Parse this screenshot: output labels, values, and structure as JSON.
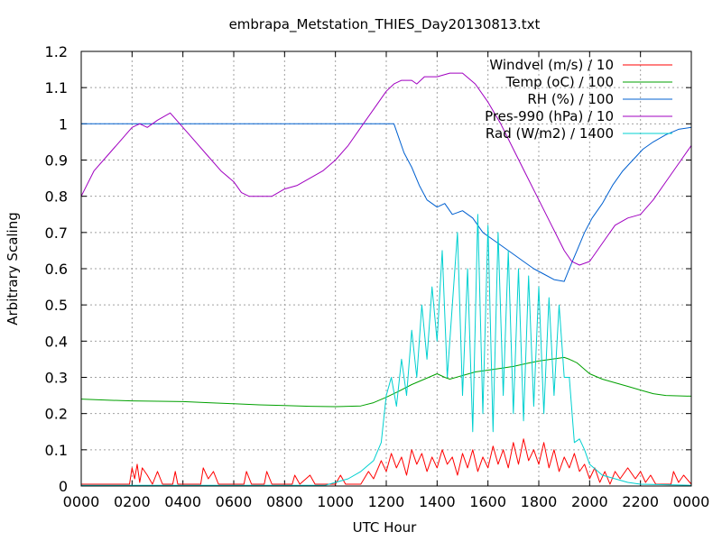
{
  "chart_data": {
    "type": "line",
    "title": "embrapa_Metstation_THIES_Day20130813.txt",
    "xlabel": "UTC Hour",
    "ylabel": "Arbitrary Scaling",
    "xlim": [
      0,
      24
    ],
    "ylim": [
      0,
      1.2
    ],
    "x_tick_labels": [
      "0000",
      "0200",
      "0400",
      "0600",
      "0800",
      "1000",
      "1200",
      "1400",
      "1600",
      "1800",
      "2000",
      "2200",
      "0000"
    ],
    "y_tick_labels": [
      "0",
      "0.1",
      "0.2",
      "0.3",
      "0.4",
      "0.5",
      "0.6",
      "0.7",
      "0.8",
      "0.9",
      "1",
      "1.1",
      "1.2"
    ],
    "grid": true,
    "legend_position": "top-right",
    "series": [
      {
        "name": "Windvel (m/s) / 10",
        "color": "#ff0000",
        "points": [
          [
            0,
            0.005
          ],
          [
            1.9,
            0.005
          ],
          [
            2.0,
            0.05
          ],
          [
            2.1,
            0.02
          ],
          [
            2.2,
            0.06
          ],
          [
            2.3,
            0.01
          ],
          [
            2.4,
            0.05
          ],
          [
            2.6,
            0.03
          ],
          [
            2.8,
            0.005
          ],
          [
            3.0,
            0.04
          ],
          [
            3.2,
            0.005
          ],
          [
            3.6,
            0.005
          ],
          [
            3.7,
            0.04
          ],
          [
            3.8,
            0.005
          ],
          [
            4.7,
            0.005
          ],
          [
            4.8,
            0.05
          ],
          [
            5.0,
            0.02
          ],
          [
            5.2,
            0.04
          ],
          [
            5.4,
            0.005
          ],
          [
            6.4,
            0.005
          ],
          [
            6.5,
            0.04
          ],
          [
            6.7,
            0.005
          ],
          [
            7.2,
            0.005
          ],
          [
            7.3,
            0.04
          ],
          [
            7.5,
            0.005
          ],
          [
            8.3,
            0.005
          ],
          [
            8.4,
            0.03
          ],
          [
            8.6,
            0.005
          ],
          [
            9.0,
            0.03
          ],
          [
            9.2,
            0.005
          ],
          [
            10.0,
            0.005
          ],
          [
            10.2,
            0.03
          ],
          [
            10.4,
            0.005
          ],
          [
            11.0,
            0.005
          ],
          [
            11.3,
            0.04
          ],
          [
            11.5,
            0.02
          ],
          [
            11.8,
            0.07
          ],
          [
            12.0,
            0.04
          ],
          [
            12.2,
            0.09
          ],
          [
            12.4,
            0.05
          ],
          [
            12.6,
            0.08
          ],
          [
            12.8,
            0.03
          ],
          [
            13.0,
            0.1
          ],
          [
            13.2,
            0.06
          ],
          [
            13.4,
            0.09
          ],
          [
            13.6,
            0.04
          ],
          [
            13.8,
            0.08
          ],
          [
            14.0,
            0.05
          ],
          [
            14.2,
            0.1
          ],
          [
            14.4,
            0.06
          ],
          [
            14.6,
            0.08
          ],
          [
            14.8,
            0.03
          ],
          [
            15.0,
            0.09
          ],
          [
            15.2,
            0.05
          ],
          [
            15.4,
            0.1
          ],
          [
            15.6,
            0.04
          ],
          [
            15.8,
            0.08
          ],
          [
            16.0,
            0.05
          ],
          [
            16.2,
            0.11
          ],
          [
            16.4,
            0.06
          ],
          [
            16.6,
            0.1
          ],
          [
            16.8,
            0.05
          ],
          [
            17.0,
            0.12
          ],
          [
            17.2,
            0.06
          ],
          [
            17.4,
            0.13
          ],
          [
            17.6,
            0.07
          ],
          [
            17.8,
            0.1
          ],
          [
            18.0,
            0.06
          ],
          [
            18.2,
            0.12
          ],
          [
            18.4,
            0.05
          ],
          [
            18.6,
            0.1
          ],
          [
            18.8,
            0.04
          ],
          [
            19.0,
            0.08
          ],
          [
            19.2,
            0.05
          ],
          [
            19.4,
            0.09
          ],
          [
            19.6,
            0.04
          ],
          [
            19.8,
            0.06
          ],
          [
            20.0,
            0.02
          ],
          [
            20.2,
            0.05
          ],
          [
            20.4,
            0.01
          ],
          [
            20.6,
            0.04
          ],
          [
            20.8,
            0.005
          ],
          [
            21.0,
            0.04
          ],
          [
            21.2,
            0.02
          ],
          [
            21.5,
            0.05
          ],
          [
            21.8,
            0.02
          ],
          [
            22.0,
            0.04
          ],
          [
            22.2,
            0.01
          ],
          [
            22.4,
            0.03
          ],
          [
            22.6,
            0.005
          ],
          [
            23.2,
            0.005
          ],
          [
            23.3,
            0.04
          ],
          [
            23.5,
            0.01
          ],
          [
            23.7,
            0.03
          ],
          [
            24,
            0.005
          ]
        ]
      },
      {
        "name": "Temp (oC) / 100",
        "color": "#00a000",
        "points": [
          [
            0,
            0.24
          ],
          [
            1,
            0.237
          ],
          [
            2,
            0.235
          ],
          [
            3,
            0.234
          ],
          [
            4,
            0.233
          ],
          [
            5,
            0.23
          ],
          [
            6,
            0.227
          ],
          [
            7,
            0.224
          ],
          [
            8,
            0.222
          ],
          [
            9,
            0.22
          ],
          [
            10,
            0.219
          ],
          [
            11,
            0.221
          ],
          [
            11.5,
            0.23
          ],
          [
            12,
            0.245
          ],
          [
            12.5,
            0.262
          ],
          [
            13,
            0.28
          ],
          [
            13.5,
            0.295
          ],
          [
            14,
            0.31
          ],
          [
            14.3,
            0.3
          ],
          [
            14.5,
            0.295
          ],
          [
            15,
            0.305
          ],
          [
            15.5,
            0.315
          ],
          [
            16,
            0.32
          ],
          [
            16.5,
            0.325
          ],
          [
            17,
            0.33
          ],
          [
            17.5,
            0.338
          ],
          [
            18,
            0.345
          ],
          [
            18.5,
            0.35
          ],
          [
            19,
            0.355
          ],
          [
            19.2,
            0.35
          ],
          [
            19.5,
            0.34
          ],
          [
            20,
            0.31
          ],
          [
            20.5,
            0.295
          ],
          [
            21,
            0.285
          ],
          [
            21.5,
            0.275
          ],
          [
            22,
            0.265
          ],
          [
            22.5,
            0.255
          ],
          [
            23,
            0.25
          ],
          [
            24,
            0.248
          ]
        ]
      },
      {
        "name": "RH (%) / 100",
        "color": "#0060d0",
        "points": [
          [
            0,
            1.0
          ],
          [
            12.3,
            1.0
          ],
          [
            12.5,
            0.96
          ],
          [
            12.7,
            0.92
          ],
          [
            13,
            0.88
          ],
          [
            13.3,
            0.83
          ],
          [
            13.6,
            0.79
          ],
          [
            14,
            0.77
          ],
          [
            14.3,
            0.78
          ],
          [
            14.6,
            0.75
          ],
          [
            15,
            0.76
          ],
          [
            15.4,
            0.74
          ],
          [
            15.8,
            0.7
          ],
          [
            16.2,
            0.68
          ],
          [
            16.6,
            0.66
          ],
          [
            17,
            0.64
          ],
          [
            17.4,
            0.62
          ],
          [
            17.8,
            0.6
          ],
          [
            18.2,
            0.585
          ],
          [
            18.6,
            0.57
          ],
          [
            19,
            0.565
          ],
          [
            19.2,
            0.6
          ],
          [
            19.5,
            0.65
          ],
          [
            19.8,
            0.7
          ],
          [
            20.1,
            0.74
          ],
          [
            20.5,
            0.78
          ],
          [
            20.9,
            0.83
          ],
          [
            21.3,
            0.87
          ],
          [
            21.7,
            0.9
          ],
          [
            22.1,
            0.93
          ],
          [
            22.5,
            0.95
          ],
          [
            23,
            0.97
          ],
          [
            23.5,
            0.985
          ],
          [
            24,
            0.99
          ]
        ]
      },
      {
        "name": "Pres-990 (hPa) / 10",
        "color": "#a000c0",
        "points": [
          [
            0,
            0.8
          ],
          [
            0.5,
            0.87
          ],
          [
            1,
            0.91
          ],
          [
            1.5,
            0.95
          ],
          [
            2,
            0.99
          ],
          [
            2.3,
            1.0
          ],
          [
            2.6,
            0.99
          ],
          [
            3,
            1.01
          ],
          [
            3.5,
            1.03
          ],
          [
            4,
            0.99
          ],
          [
            4.5,
            0.95
          ],
          [
            5,
            0.91
          ],
          [
            5.5,
            0.87
          ],
          [
            6,
            0.84
          ],
          [
            6.3,
            0.81
          ],
          [
            6.6,
            0.8
          ],
          [
            7,
            0.8
          ],
          [
            7.5,
            0.8
          ],
          [
            8,
            0.82
          ],
          [
            8.5,
            0.83
          ],
          [
            9,
            0.85
          ],
          [
            9.5,
            0.87
          ],
          [
            10,
            0.9
          ],
          [
            10.5,
            0.94
          ],
          [
            11,
            0.99
          ],
          [
            11.5,
            1.04
          ],
          [
            12,
            1.09
          ],
          [
            12.3,
            1.11
          ],
          [
            12.6,
            1.12
          ],
          [
            13,
            1.12
          ],
          [
            13.2,
            1.11
          ],
          [
            13.5,
            1.13
          ],
          [
            14,
            1.13
          ],
          [
            14.5,
            1.14
          ],
          [
            15,
            1.14
          ],
          [
            15.5,
            1.11
          ],
          [
            16,
            1.06
          ],
          [
            16.5,
            1.0
          ],
          [
            17,
            0.93
          ],
          [
            17.5,
            0.86
          ],
          [
            18,
            0.79
          ],
          [
            18.5,
            0.72
          ],
          [
            19,
            0.65
          ],
          [
            19.3,
            0.62
          ],
          [
            19.6,
            0.61
          ],
          [
            20,
            0.62
          ],
          [
            20.3,
            0.65
          ],
          [
            20.7,
            0.69
          ],
          [
            21,
            0.72
          ],
          [
            21.5,
            0.74
          ],
          [
            22,
            0.75
          ],
          [
            22.5,
            0.79
          ],
          [
            23,
            0.84
          ],
          [
            23.5,
            0.89
          ],
          [
            24,
            0.94
          ]
        ]
      },
      {
        "name": "Rad (W/m2) / 1400",
        "color": "#00d0d0",
        "points": [
          [
            0,
            0.002
          ],
          [
            9.6,
            0.002
          ],
          [
            10,
            0.01
          ],
          [
            10.5,
            0.02
          ],
          [
            11,
            0.04
          ],
          [
            11.5,
            0.07
          ],
          [
            11.8,
            0.12
          ],
          [
            12,
            0.25
          ],
          [
            12.2,
            0.3
          ],
          [
            12.4,
            0.22
          ],
          [
            12.6,
            0.35
          ],
          [
            12.8,
            0.25
          ],
          [
            13,
            0.43
          ],
          [
            13.2,
            0.3
          ],
          [
            13.4,
            0.5
          ],
          [
            13.6,
            0.35
          ],
          [
            13.8,
            0.55
          ],
          [
            14,
            0.4
          ],
          [
            14.2,
            0.65
          ],
          [
            14.4,
            0.3
          ],
          [
            14.6,
            0.5
          ],
          [
            14.8,
            0.7
          ],
          [
            15,
            0.25
          ],
          [
            15.2,
            0.6
          ],
          [
            15.4,
            0.15
          ],
          [
            15.6,
            0.75
          ],
          [
            15.8,
            0.2
          ],
          [
            16,
            0.72
          ],
          [
            16.2,
            0.15
          ],
          [
            16.4,
            0.7
          ],
          [
            16.6,
            0.25
          ],
          [
            16.8,
            0.65
          ],
          [
            17,
            0.2
          ],
          [
            17.2,
            0.6
          ],
          [
            17.4,
            0.18
          ],
          [
            17.6,
            0.58
          ],
          [
            17.8,
            0.22
          ],
          [
            18,
            0.55
          ],
          [
            18.2,
            0.2
          ],
          [
            18.4,
            0.52
          ],
          [
            18.6,
            0.25
          ],
          [
            18.8,
            0.5
          ],
          [
            19,
            0.3
          ],
          [
            19.2,
            0.3
          ],
          [
            19.4,
            0.12
          ],
          [
            19.6,
            0.13
          ],
          [
            19.8,
            0.1
          ],
          [
            20,
            0.06
          ],
          [
            20.5,
            0.03
          ],
          [
            21,
            0.02
          ],
          [
            21.5,
            0.01
          ],
          [
            22,
            0.005
          ],
          [
            24,
            0.002
          ]
        ]
      }
    ]
  }
}
